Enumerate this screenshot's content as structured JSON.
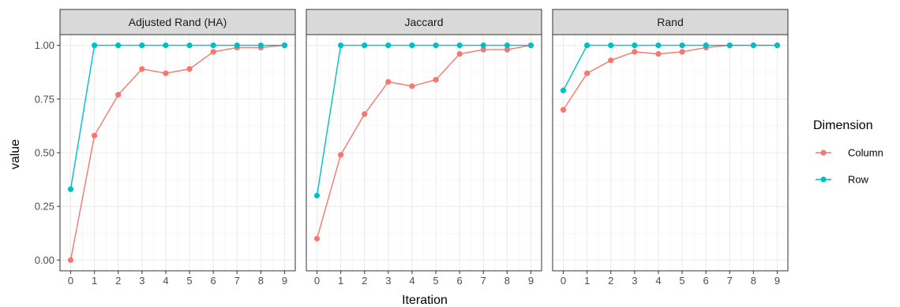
{
  "chart_data": {
    "type": "line",
    "xlabel": "Iteration",
    "ylabel": "value",
    "x": [
      0,
      1,
      2,
      3,
      4,
      5,
      6,
      7,
      8,
      9
    ],
    "x_ticks": [
      "0",
      "1",
      "2",
      "3",
      "4",
      "5",
      "6",
      "7",
      "8",
      "9"
    ],
    "y_ticks": [
      "0.00",
      "0.25",
      "0.50",
      "0.75",
      "1.00"
    ],
    "xlim": [
      -0.45,
      9.45
    ],
    "ylim": [
      -0.05,
      1.05
    ],
    "grid": true,
    "legend": {
      "title": "Dimension",
      "placement": "right",
      "entries": [
        {
          "name": "Column",
          "color": "#F8766D"
        },
        {
          "name": "Row",
          "color": "#00BFC4"
        }
      ]
    },
    "facets": [
      {
        "title": "Adjusted Rand (HA)",
        "series": [
          {
            "name": "Column",
            "color": "#F8766D",
            "values": [
              0.0,
              0.58,
              0.77,
              0.89,
              0.87,
              0.89,
              0.97,
              0.99,
              0.99,
              1.0
            ]
          },
          {
            "name": "Row",
            "color": "#00BFC4",
            "values": [
              0.33,
              1.0,
              1.0,
              1.0,
              1.0,
              1.0,
              1.0,
              1.0,
              1.0,
              1.0
            ]
          }
        ]
      },
      {
        "title": "Jaccard",
        "series": [
          {
            "name": "Column",
            "color": "#F8766D",
            "values": [
              0.1,
              0.49,
              0.68,
              0.83,
              0.81,
              0.84,
              0.96,
              0.98,
              0.98,
              1.0
            ]
          },
          {
            "name": "Row",
            "color": "#00BFC4",
            "values": [
              0.3,
              1.0,
              1.0,
              1.0,
              1.0,
              1.0,
              1.0,
              1.0,
              1.0,
              1.0
            ]
          }
        ]
      },
      {
        "title": "Rand",
        "series": [
          {
            "name": "Column",
            "color": "#F8766D",
            "values": [
              0.7,
              0.87,
              0.93,
              0.97,
              0.96,
              0.97,
              0.99,
              1.0,
              1.0,
              1.0
            ]
          },
          {
            "name": "Row",
            "color": "#00BFC4",
            "values": [
              0.79,
              1.0,
              1.0,
              1.0,
              1.0,
              1.0,
              1.0,
              1.0,
              1.0,
              1.0
            ]
          }
        ]
      }
    ]
  }
}
